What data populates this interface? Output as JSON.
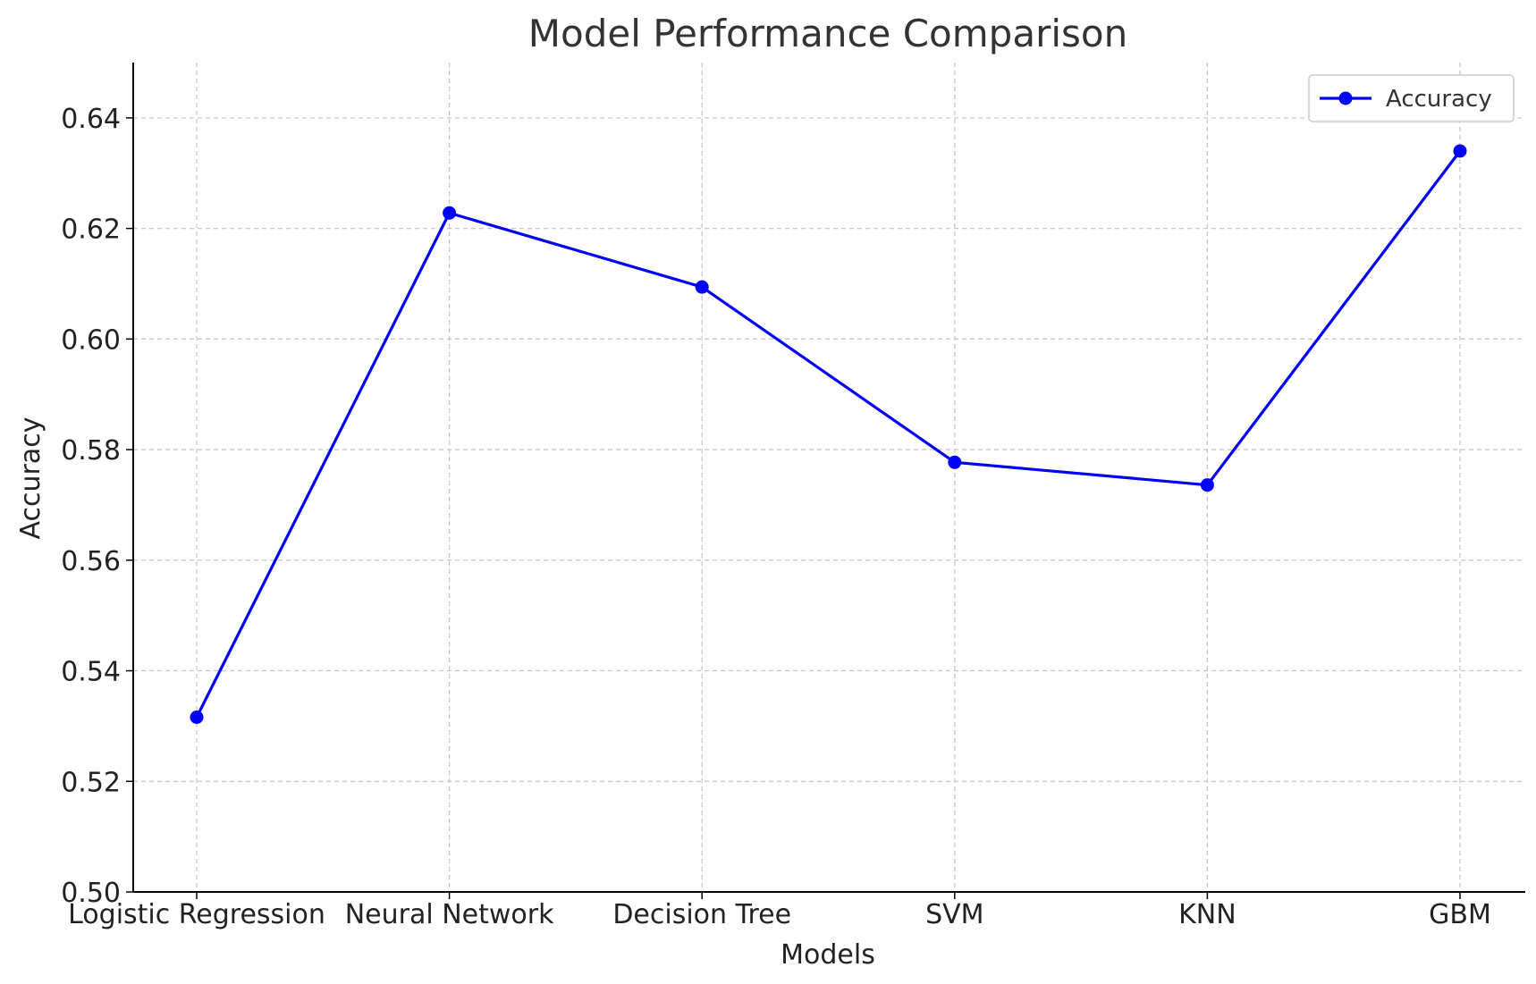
{
  "chart_data": {
    "type": "line",
    "title": "Model Performance Comparison",
    "xlabel": "Models",
    "ylabel": "Accuracy",
    "categories": [
      "Logistic Regression",
      "Neural Network",
      "Decision Tree",
      "SVM",
      "KNN",
      "GBM"
    ],
    "series": [
      {
        "name": "Accuracy",
        "values": [
          0.5316,
          0.6228,
          0.6094,
          0.5777,
          0.5736,
          0.634
        ],
        "color": "#0000ff",
        "marker": "circle"
      }
    ],
    "ylim": [
      0.5,
      0.65
    ],
    "yticks": [
      0.5,
      0.52,
      0.54,
      0.56,
      0.58,
      0.6,
      0.62,
      0.64
    ],
    "ytick_labels": [
      "0.50",
      "0.52",
      "0.54",
      "0.56",
      "0.58",
      "0.60",
      "0.62",
      "0.64"
    ],
    "grid": true,
    "legend_position": "top-right"
  }
}
